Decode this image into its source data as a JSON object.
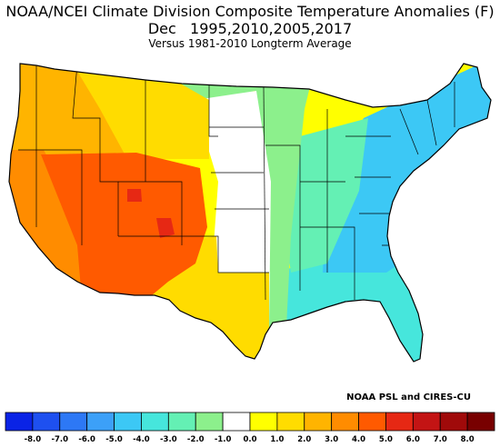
{
  "header": {
    "title_line1": "NOAA/NCEI Climate Division Composite Temperature Anomalies (F)",
    "title_line2": "Dec   1995,2010,2005,2017",
    "title_line3": "Versus 1981-2010 Longterm Average"
  },
  "credit": "NOAA PSL and CIRES-CU",
  "colorbar": {
    "tick_labels": [
      "-8.0",
      "-7.0",
      "-6.0",
      "-5.0",
      "-4.0",
      "-3.0",
      "-2.0",
      "-1.0",
      "0.0",
      "1.0",
      "2.0",
      "3.0",
      "4.0",
      "5.0",
      "6.0",
      "7.0",
      "8.0"
    ],
    "colors": [
      "#0a23e6",
      "#1e50f0",
      "#2d78f5",
      "#3ca0f8",
      "#3cc8f5",
      "#46e6dc",
      "#64f0b4",
      "#8cf08c",
      "#ffffff",
      "#ffff00",
      "#ffdc00",
      "#ffb400",
      "#ff8c00",
      "#ff5a00",
      "#e62814",
      "#c31414",
      "#a00a0a",
      "#780000"
    ]
  },
  "map_regions": [
    {
      "name": "pacific-northwest",
      "anomaly": 2.0,
      "color": "#ffb400"
    },
    {
      "name": "california",
      "anomaly": 3.0,
      "color": "#ff8c00"
    },
    {
      "name": "great-basin-southwest",
      "anomaly": 4.0,
      "color": "#ff5a00"
    },
    {
      "name": "colorado-hotspot",
      "anomaly": 5.0,
      "color": "#e62814"
    },
    {
      "name": "northern-rockies",
      "anomaly": 1.0,
      "color": "#ffdc00"
    },
    {
      "name": "southern-plains-texas",
      "anomaly": 1.0,
      "color": "#ffdc00"
    },
    {
      "name": "central-plains",
      "anomaly": 0.0,
      "color": "#ffffff"
    },
    {
      "name": "upper-midwest",
      "anomaly": -1.5,
      "color": "#8cf08c"
    },
    {
      "name": "great-lakes-ohio-valley",
      "anomaly": -2.5,
      "color": "#64f0b4"
    },
    {
      "name": "northeast-appalachia",
      "anomaly": -3.5,
      "color": "#3cc8f5"
    },
    {
      "name": "southeast",
      "anomaly": -2.5,
      "color": "#46e6dc"
    }
  ]
}
